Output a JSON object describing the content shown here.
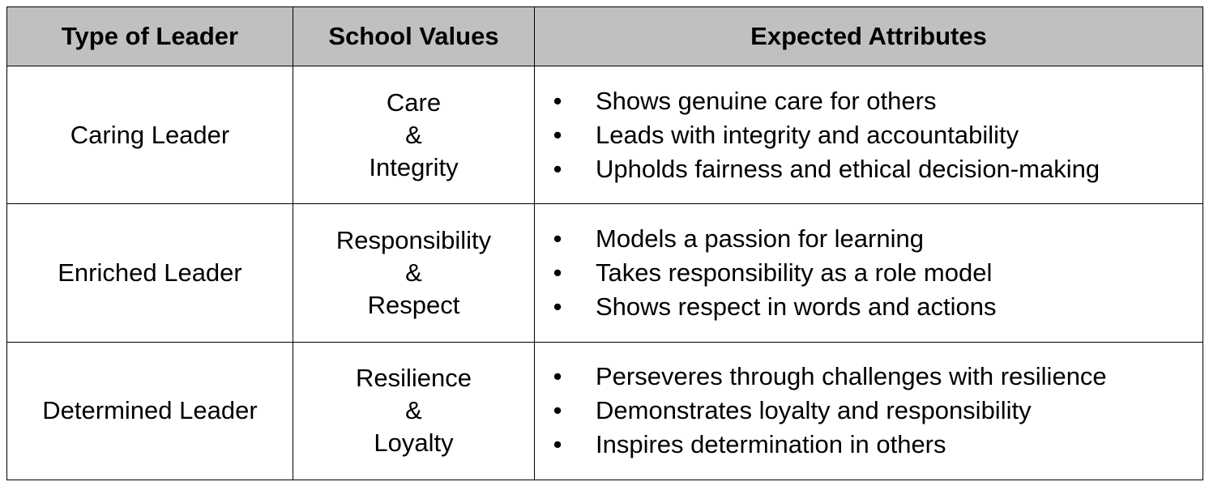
{
  "table": {
    "headers": {
      "type": "Type of Leader",
      "values": "School Values",
      "attributes": "Expected Attributes"
    },
    "bullet_glyph": "•",
    "rows": [
      {
        "type": "Caring Leader",
        "values": [
          "Care",
          "&",
          "Integrity"
        ],
        "attributes": [
          "Shows genuine care for others",
          "Leads with integrity and accountability",
          "Upholds fairness and ethical decision-making"
        ]
      },
      {
        "type": "Enriched Leader",
        "values": [
          "Responsibility",
          "&",
          "Respect"
        ],
        "attributes": [
          "Models a passion for learning",
          "Takes responsibility as a role model",
          "Shows respect in words and actions"
        ]
      },
      {
        "type": "Determined Leader",
        "values": [
          "Resilience",
          "&",
          "Loyalty"
        ],
        "attributes": [
          "Perseveres through challenges with resilience",
          "Demonstrates loyalty and responsibility",
          "Inspires determination in others"
        ]
      }
    ]
  }
}
